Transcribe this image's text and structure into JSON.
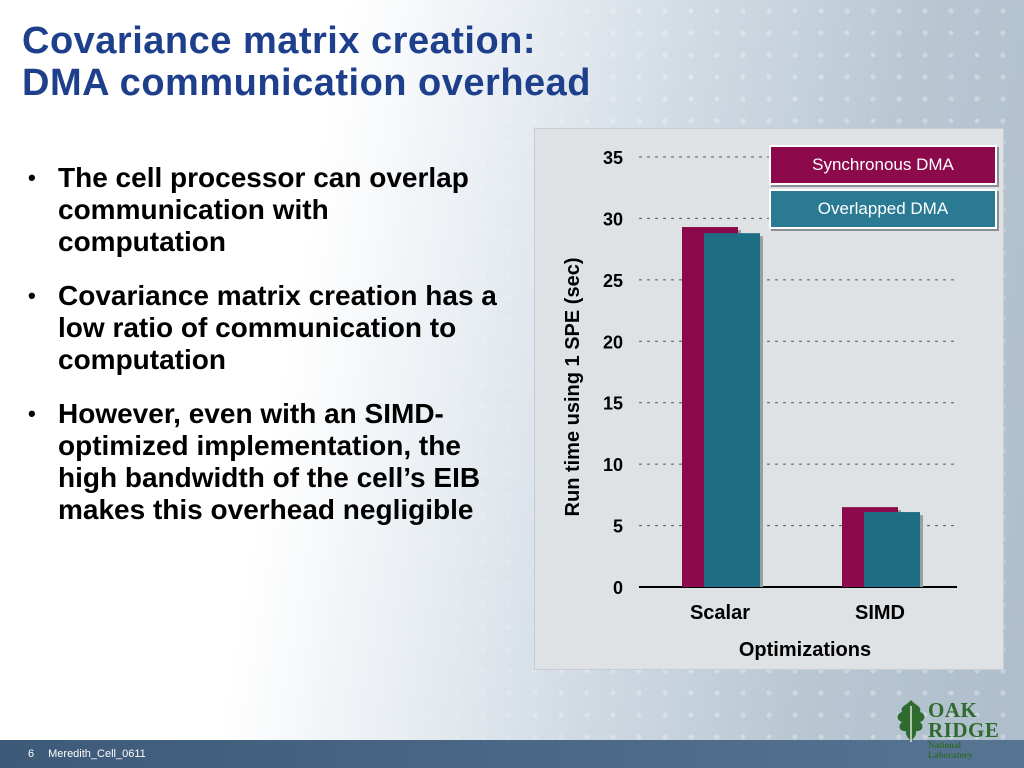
{
  "slide": {
    "title_line1": "Covariance matrix creation:",
    "title_line2": "DMA communication overhead",
    "bullets": [
      "The cell processor can overlap communication with computation",
      "Covariance matrix creation has a low ratio of communication to computation",
      "However, even with an SIMD-optimized implementation, the high bandwidth of the cell’s EIB makes this overhead negligible"
    ],
    "bullet_symbol": "•"
  },
  "footer": {
    "page_number": "6",
    "label": "Meredith_Cell_0611"
  },
  "logo": {
    "line1": "OAK",
    "line2": "RIDGE",
    "line3": "National Laboratory"
  },
  "colors": {
    "title": "#1e3f8c",
    "synchronous": "#8c0a4b",
    "overlapped": "#1d6e84",
    "legend_sync_bg": "#8c0a4b",
    "legend_overlap_bg": "#2a7a94"
  },
  "chart_data": {
    "type": "bar",
    "categories": [
      "Scalar",
      "SIMD"
    ],
    "series": [
      {
        "name": "Synchronous DMA",
        "values": [
          29.3,
          6.5
        ]
      },
      {
        "name": "Overlapped DMA",
        "values": [
          28.8,
          6.1
        ]
      }
    ],
    "xlabel": "Optimizations",
    "ylabel": "Run time using 1 SPE (sec)",
    "ylim": [
      0,
      35
    ],
    "yticks": [
      0,
      5,
      10,
      15,
      20,
      25,
      30,
      35
    ],
    "grid": true,
    "legend_position": "top-right"
  }
}
